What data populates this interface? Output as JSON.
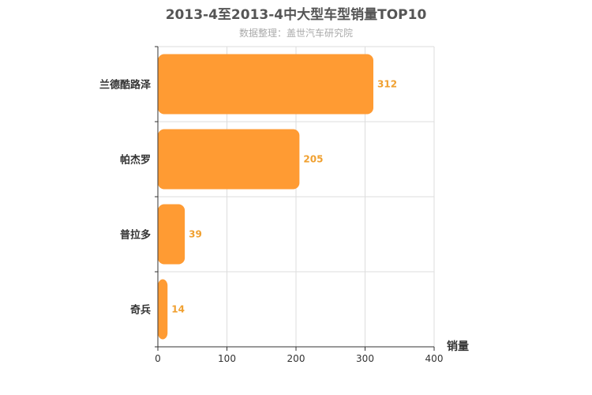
{
  "chart_data": {
    "type": "bar",
    "orientation": "horizontal",
    "title": "2013-4至2013-4中大型车型销量TOP10",
    "subtitle": "数据整理：盖世汽车研究院",
    "categories": [
      "兰德酷路泽",
      "帕杰罗",
      "普拉多",
      "奇兵"
    ],
    "values": [
      312,
      205,
      39,
      14
    ],
    "xlabel": "销量",
    "ylabel": "",
    "xlim": [
      0,
      400
    ],
    "xticks": [
      0,
      100,
      200,
      300,
      400
    ],
    "grid": true,
    "colors": {
      "bar": "#FF9B33",
      "label": "#F0A030",
      "axis": "#333333",
      "grid": "#dddddd"
    }
  }
}
